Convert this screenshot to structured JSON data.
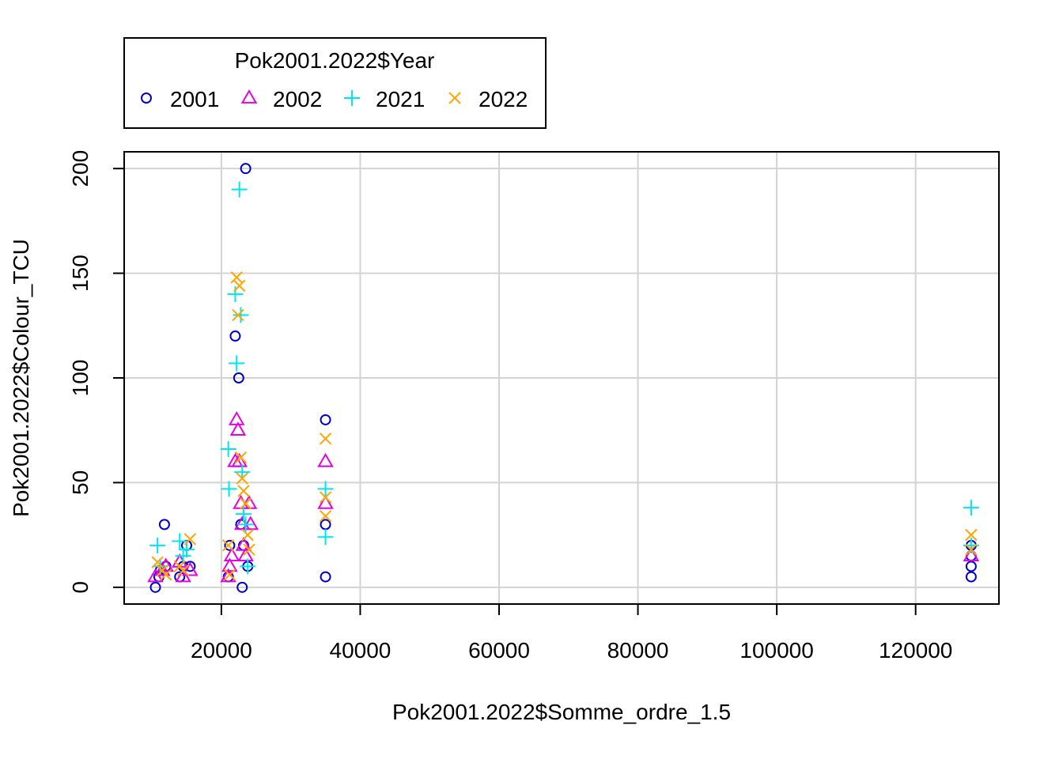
{
  "chart_data": {
    "type": "scatter",
    "xlabel": "Pok2001.2022$Somme_ordre_1.5",
    "ylabel": "Pok2001.2022$Colour_TCU",
    "xlim": [
      6000,
      132000
    ],
    "ylim": [
      -8,
      208
    ],
    "x_ticks": [
      20000,
      40000,
      60000,
      80000,
      100000,
      120000
    ],
    "y_ticks": [
      0,
      50,
      100,
      150,
      200
    ],
    "grid": true,
    "legend": {
      "title": "Pok2001.2022$Year",
      "placement": "top-left, outside plot"
    },
    "series": [
      {
        "name": "2001",
        "marker": "circle",
        "color": "#0000CD",
        "points": [
          [
            10500,
            0
          ],
          [
            11000,
            5
          ],
          [
            11200,
            8
          ],
          [
            11800,
            30
          ],
          [
            12000,
            10
          ],
          [
            14000,
            5
          ],
          [
            14500,
            10
          ],
          [
            15000,
            20
          ],
          [
            15500,
            10
          ],
          [
            21000,
            5
          ],
          [
            21200,
            20
          ],
          [
            22000,
            120
          ],
          [
            22500,
            100
          ],
          [
            22800,
            30
          ],
          [
            23000,
            0
          ],
          [
            23200,
            20
          ],
          [
            23500,
            200
          ],
          [
            23800,
            10
          ],
          [
            35000,
            80
          ],
          [
            35000,
            30
          ],
          [
            35000,
            5
          ],
          [
            128000,
            20
          ],
          [
            128000,
            15
          ],
          [
            128000,
            10
          ],
          [
            128000,
            5
          ]
        ]
      },
      {
        "name": "2002",
        "marker": "triangle",
        "color": "#E600E6",
        "points": [
          [
            10500,
            5
          ],
          [
            11500,
            8
          ],
          [
            12000,
            10
          ],
          [
            14000,
            12
          ],
          [
            14500,
            5
          ],
          [
            15500,
            8
          ],
          [
            21000,
            5
          ],
          [
            21200,
            10
          ],
          [
            21500,
            15
          ],
          [
            22000,
            60
          ],
          [
            22200,
            80
          ],
          [
            22400,
            75
          ],
          [
            22600,
            60
          ],
          [
            22800,
            40
          ],
          [
            23000,
            30
          ],
          [
            23200,
            20
          ],
          [
            23500,
            15
          ],
          [
            24000,
            40
          ],
          [
            24200,
            30
          ],
          [
            35000,
            60
          ],
          [
            35000,
            40
          ],
          [
            128000,
            15
          ]
        ]
      },
      {
        "name": "2021",
        "marker": "plus",
        "color": "#00E5EE",
        "points": [
          [
            10800,
            20
          ],
          [
            11200,
            10
          ],
          [
            14000,
            22
          ],
          [
            14500,
            15
          ],
          [
            15000,
            18
          ],
          [
            21000,
            66
          ],
          [
            21100,
            47
          ],
          [
            22000,
            140
          ],
          [
            22200,
            107
          ],
          [
            22600,
            190
          ],
          [
            22800,
            130
          ],
          [
            23000,
            55
          ],
          [
            23200,
            35
          ],
          [
            23500,
            30
          ],
          [
            23800,
            10
          ],
          [
            35000,
            47
          ],
          [
            35000,
            24
          ],
          [
            128000,
            38
          ],
          [
            128000,
            20
          ]
        ]
      },
      {
        "name": "2022",
        "marker": "cross",
        "color": "#FFA500",
        "points": [
          [
            10800,
            12
          ],
          [
            11500,
            8
          ],
          [
            12000,
            6
          ],
          [
            14000,
            10
          ],
          [
            14500,
            8
          ],
          [
            15500,
            23
          ],
          [
            21000,
            20
          ],
          [
            21200,
            6
          ],
          [
            22200,
            148
          ],
          [
            22400,
            130
          ],
          [
            22600,
            144
          ],
          [
            22800,
            62
          ],
          [
            23000,
            52
          ],
          [
            23200,
            46
          ],
          [
            23500,
            40
          ],
          [
            23800,
            25
          ],
          [
            24000,
            18
          ],
          [
            35000,
            71
          ],
          [
            35000,
            43
          ],
          [
            35000,
            34
          ],
          [
            128000,
            25
          ],
          [
            128000,
            18
          ]
        ]
      }
    ]
  }
}
